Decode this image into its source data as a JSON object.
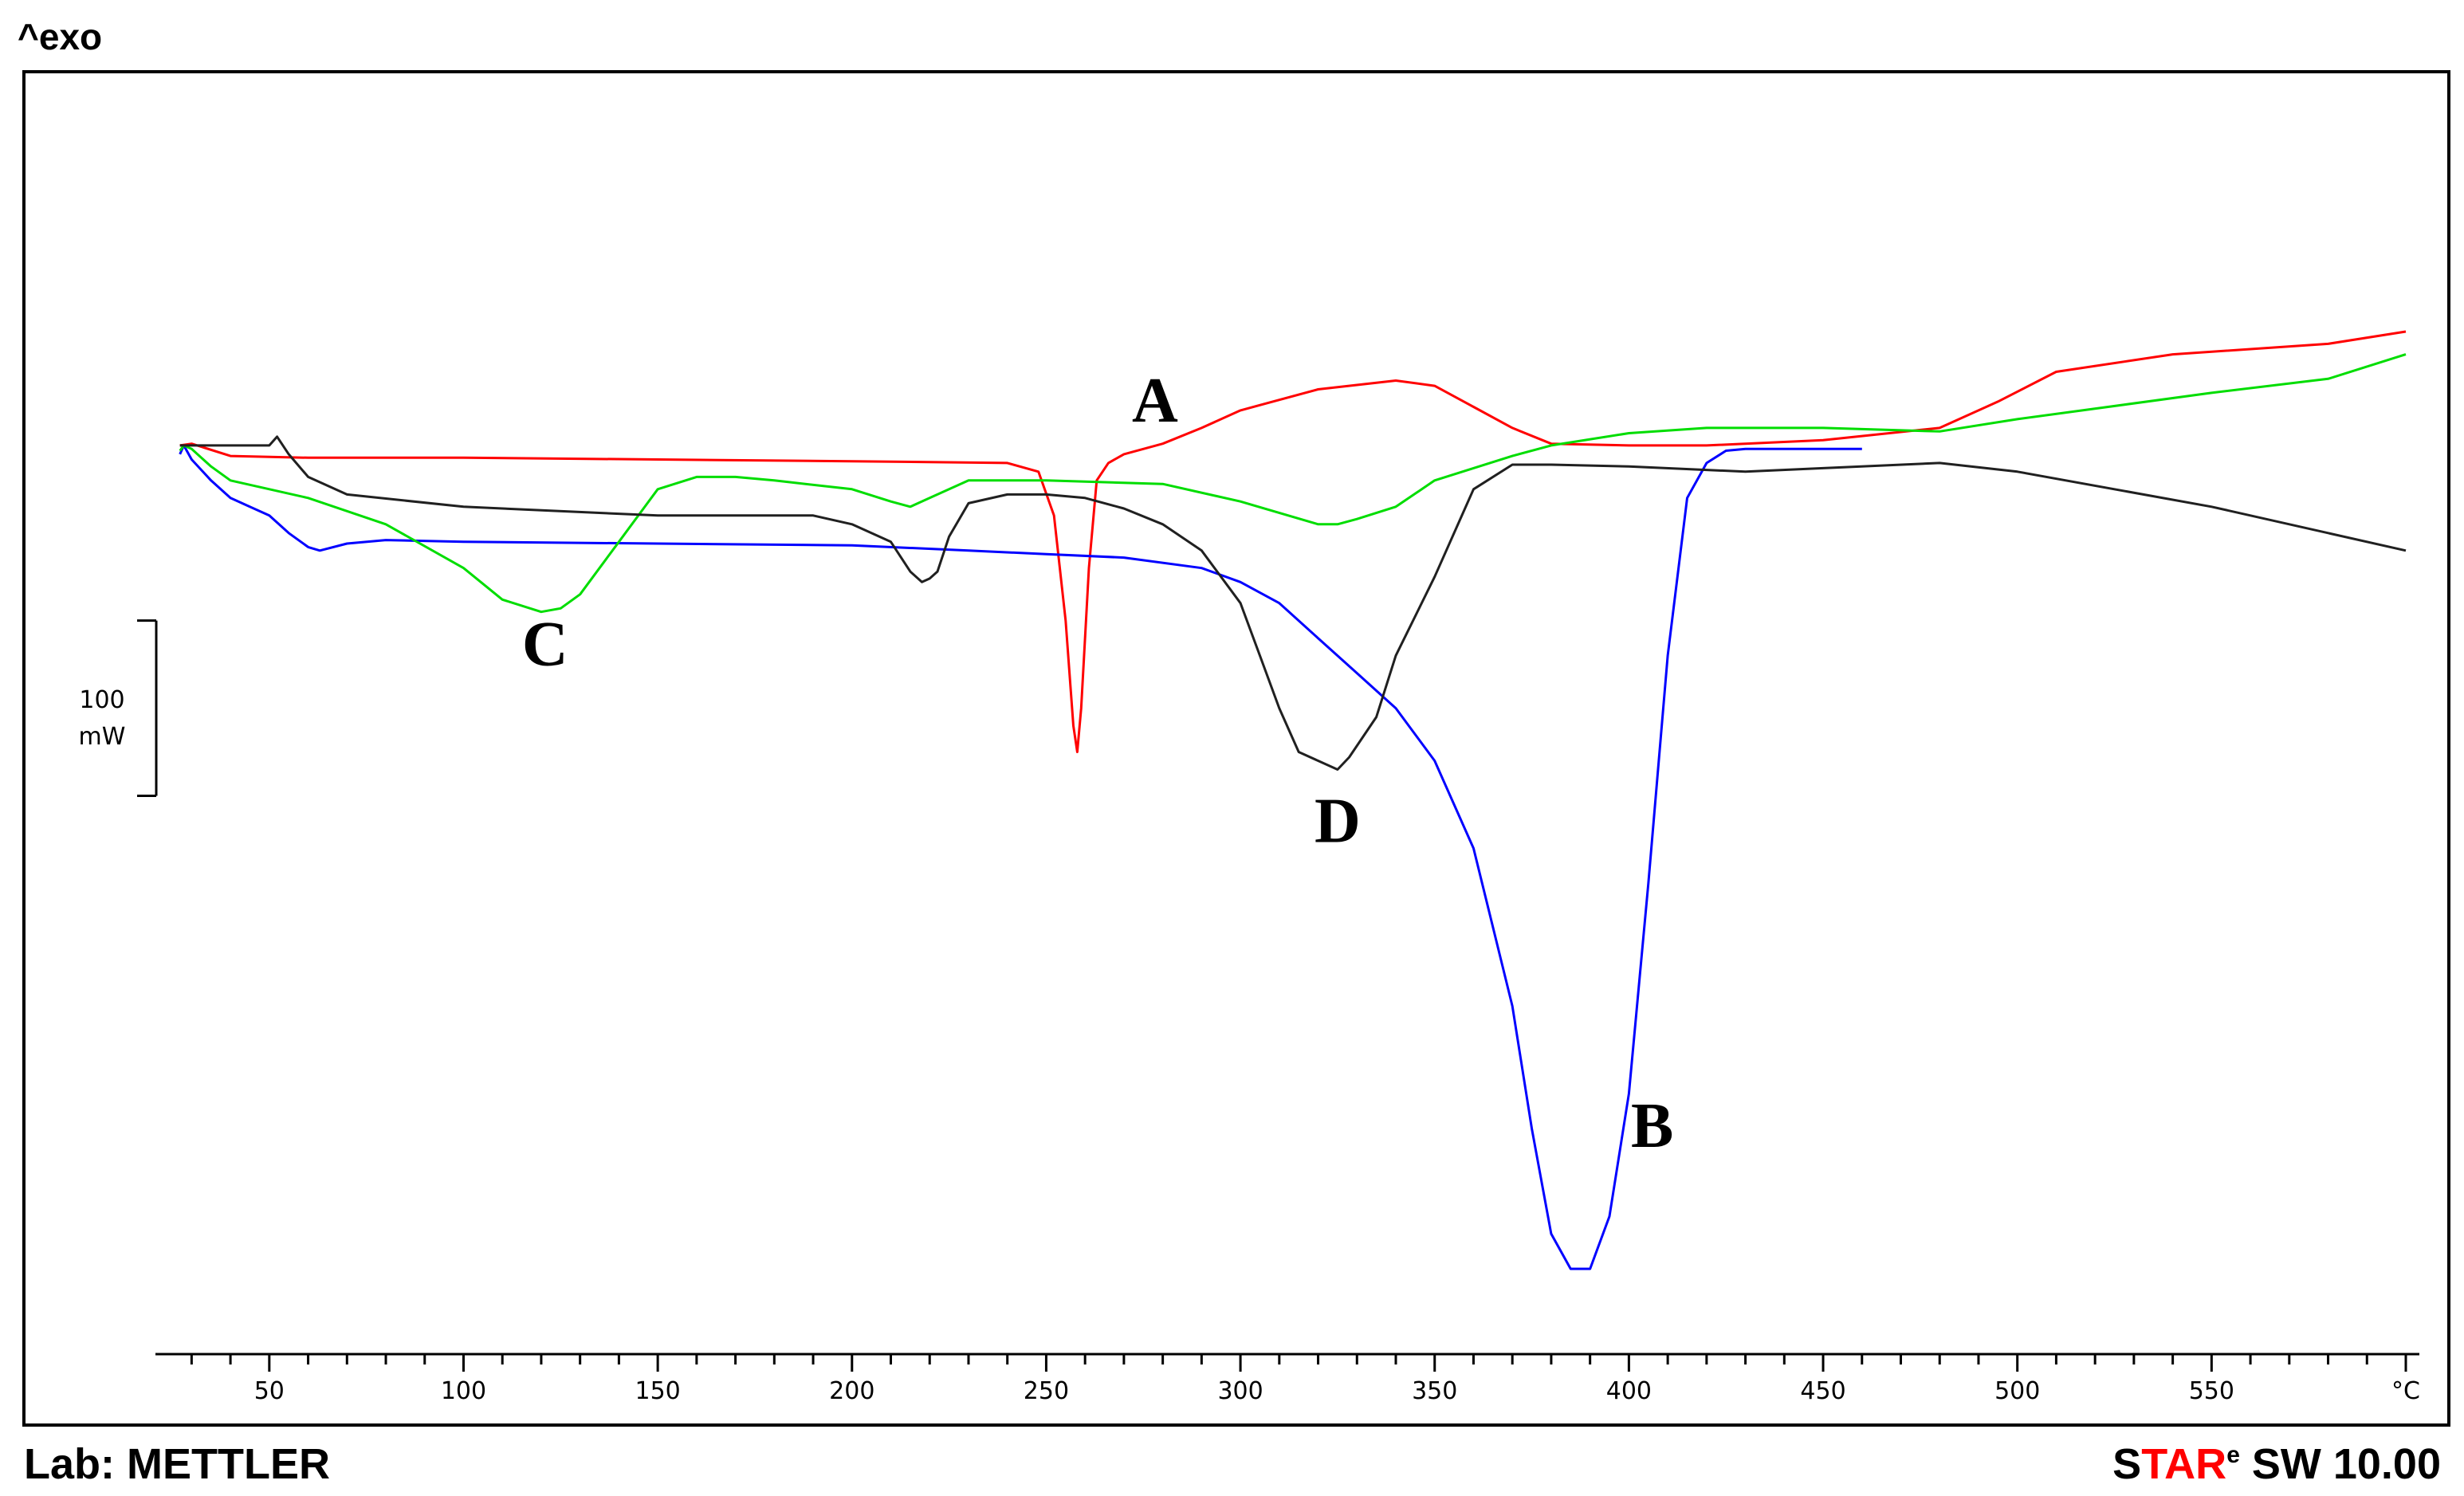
{
  "header": {
    "exo_label": "^exo"
  },
  "footer": {
    "lab_label": "Lab: METTLER",
    "software": {
      "s": "S",
      "tar": "TAR",
      "e": "e",
      "rest": " SW 10.00"
    }
  },
  "colors": {
    "A": "#ff0000",
    "B": "#0000ff",
    "C": "#00dd00",
    "D": "#202020",
    "axis": "#000000",
    "brand_red": "#ff0000"
  },
  "chart_data": {
    "type": "line",
    "title": "",
    "xlabel": "°C",
    "ylabel": "",
    "xlim": [
      25,
      600
    ],
    "ylim": [
      -470,
      70
    ],
    "x_ticks": [
      50,
      100,
      150,
      200,
      250,
      300,
      350,
      400,
      450,
      500,
      550
    ],
    "x_unit_label": "°C",
    "scale_bar": {
      "value_label": "100",
      "unit_label": "mW",
      "value": 100
    },
    "series": [
      {
        "name": "A",
        "color": "red",
        "x": [
          27,
          30,
          40,
          60,
          100,
          200,
          240,
          248,
          252,
          255,
          257,
          258,
          259,
          261,
          263,
          266,
          270,
          280,
          290,
          300,
          320,
          340,
          350,
          360,
          370,
          380,
          400,
          420,
          450,
          480,
          495,
          510,
          540,
          580,
          600
        ],
        "y": [
          0,
          1,
          -6,
          -7,
          -7,
          -9,
          -10,
          -15,
          -40,
          -100,
          -160,
          -175,
          -150,
          -70,
          -20,
          -10,
          -5,
          1,
          10,
          20,
          32,
          37,
          34,
          22,
          10,
          1,
          0,
          0,
          3,
          10,
          25,
          42,
          52,
          58,
          65
        ]
      },
      {
        "name": "B",
        "color": "blue",
        "x": [
          27,
          28,
          30,
          35,
          40,
          50,
          55,
          60,
          63,
          70,
          80,
          100,
          150,
          200,
          230,
          250,
          270,
          290,
          300,
          310,
          320,
          330,
          340,
          350,
          360,
          370,
          375,
          380,
          385,
          390,
          395,
          400,
          405,
          410,
          415,
          420,
          425,
          430,
          460
        ],
        "y": [
          -5,
          0,
          -8,
          -20,
          -30,
          -40,
          -50,
          -58,
          -60,
          -56,
          -54,
          -55,
          -56,
          -57,
          -60,
          -62,
          -64,
          -70,
          -78,
          -90,
          -110,
          -130,
          -150,
          -180,
          -230,
          -320,
          -390,
          -450,
          -470,
          -470,
          -440,
          -370,
          -250,
          -120,
          -30,
          -10,
          -3,
          -2,
          -2
        ]
      },
      {
        "name": "C",
        "color": "green",
        "x": [
          27,
          28,
          30,
          35,
          40,
          60,
          80,
          100,
          110,
          120,
          125,
          130,
          140,
          150,
          160,
          170,
          180,
          200,
          210,
          215,
          220,
          230,
          250,
          280,
          300,
          320,
          325,
          330,
          340,
          350,
          370,
          380,
          400,
          420,
          450,
          480,
          500,
          550,
          580,
          600
        ],
        "y": [
          -3,
          0,
          -2,
          -12,
          -20,
          -30,
          -45,
          -70,
          -88,
          -95,
          -93,
          -85,
          -55,
          -25,
          -18,
          -18,
          -20,
          -25,
          -32,
          -35,
          -30,
          -20,
          -20,
          -22,
          -32,
          -45,
          -45,
          -42,
          -35,
          -20,
          -6,
          0,
          7,
          10,
          10,
          8,
          15,
          30,
          38,
          52
        ]
      },
      {
        "name": "D",
        "color": "black",
        "x": [
          27,
          30,
          40,
          50,
          52,
          55,
          60,
          70,
          100,
          150,
          190,
          200,
          210,
          215,
          218,
          220,
          222,
          225,
          230,
          240,
          250,
          260,
          270,
          280,
          290,
          300,
          305,
          310,
          315,
          320,
          325,
          328,
          335,
          340,
          350,
          360,
          370,
          380,
          400,
          430,
          450,
          480,
          500,
          550,
          600
        ],
        "y": [
          0,
          0,
          0,
          0,
          5,
          -5,
          -18,
          -28,
          -35,
          -40,
          -40,
          -45,
          -55,
          -72,
          -78,
          -76,
          -72,
          -52,
          -33,
          -28,
          -28,
          -30,
          -36,
          -45,
          -60,
          -90,
          -120,
          -150,
          -175,
          -180,
          -185,
          -178,
          -155,
          -120,
          -75,
          -25,
          -11,
          -11,
          -12,
          -15,
          -13,
          -10,
          -15,
          -35,
          -60
        ]
      }
    ],
    "annotations": [
      {
        "text": "A",
        "x": 278,
        "y": 22
      },
      {
        "text": "B",
        "x": 406,
        "y": -392
      },
      {
        "text": "C",
        "x": 121,
        "y": -117
      },
      {
        "text": "D",
        "x": 325,
        "y": -218
      }
    ]
  }
}
